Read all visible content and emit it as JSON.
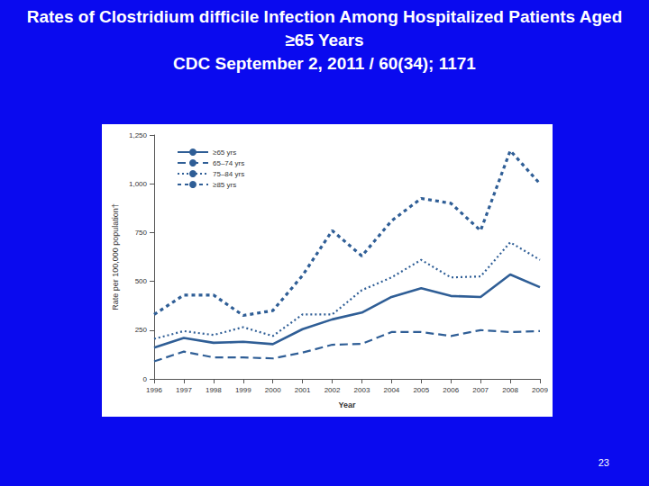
{
  "page_number": "23",
  "chart_data": {
    "type": "line",
    "title": "Rates of Clostridium difficile Infection Among Hospitalized Patients Aged ≥65 Years",
    "subtitle": "CDC September 2, 2011 / 60(34); 1171",
    "x_label": "Year",
    "y_label": "Rate per 100,000 population†",
    "categories": [
      "1996",
      "1997",
      "1998",
      "1999",
      "2000",
      "2001",
      "2002",
      "2003",
      "2004",
      "2005",
      "2006",
      "2007",
      "2008",
      "2009"
    ],
    "series": [
      {
        "name": "≥65 yrs",
        "color": "#2f5e96",
        "line_style": "solid",
        "values": [
          160,
          210,
          185,
          190,
          178,
          255,
          305,
          340,
          420,
          465,
          425,
          420,
          535,
          470
        ]
      },
      {
        "name": "65–74 yrs",
        "color": "#2f5e96",
        "line_style": "dashed",
        "values": [
          90,
          140,
          110,
          110,
          105,
          135,
          175,
          180,
          240,
          240,
          220,
          250,
          240,
          245
        ]
      },
      {
        "name": "75–84 yrs",
        "color": "#2f5e96",
        "line_style": "dotted",
        "values": [
          205,
          245,
          225,
          265,
          220,
          330,
          330,
          455,
          520,
          610,
          520,
          525,
          700,
          610
        ]
      },
      {
        "name": "≥85 yrs",
        "color": "#2f5e96",
        "line_style": "squaredot",
        "values": [
          330,
          430,
          430,
          325,
          350,
          530,
          760,
          630,
          810,
          925,
          900,
          760,
          1170,
          1000
        ]
      }
    ],
    "ylim": [
      0,
      1250
    ],
    "yticks": [
      0,
      250,
      500,
      750,
      {
        "value": 1000,
        "label": "1,000"
      },
      {
        "value": 1250,
        "label": "1,250"
      }
    ],
    "grid": false,
    "legend": "top-left"
  }
}
